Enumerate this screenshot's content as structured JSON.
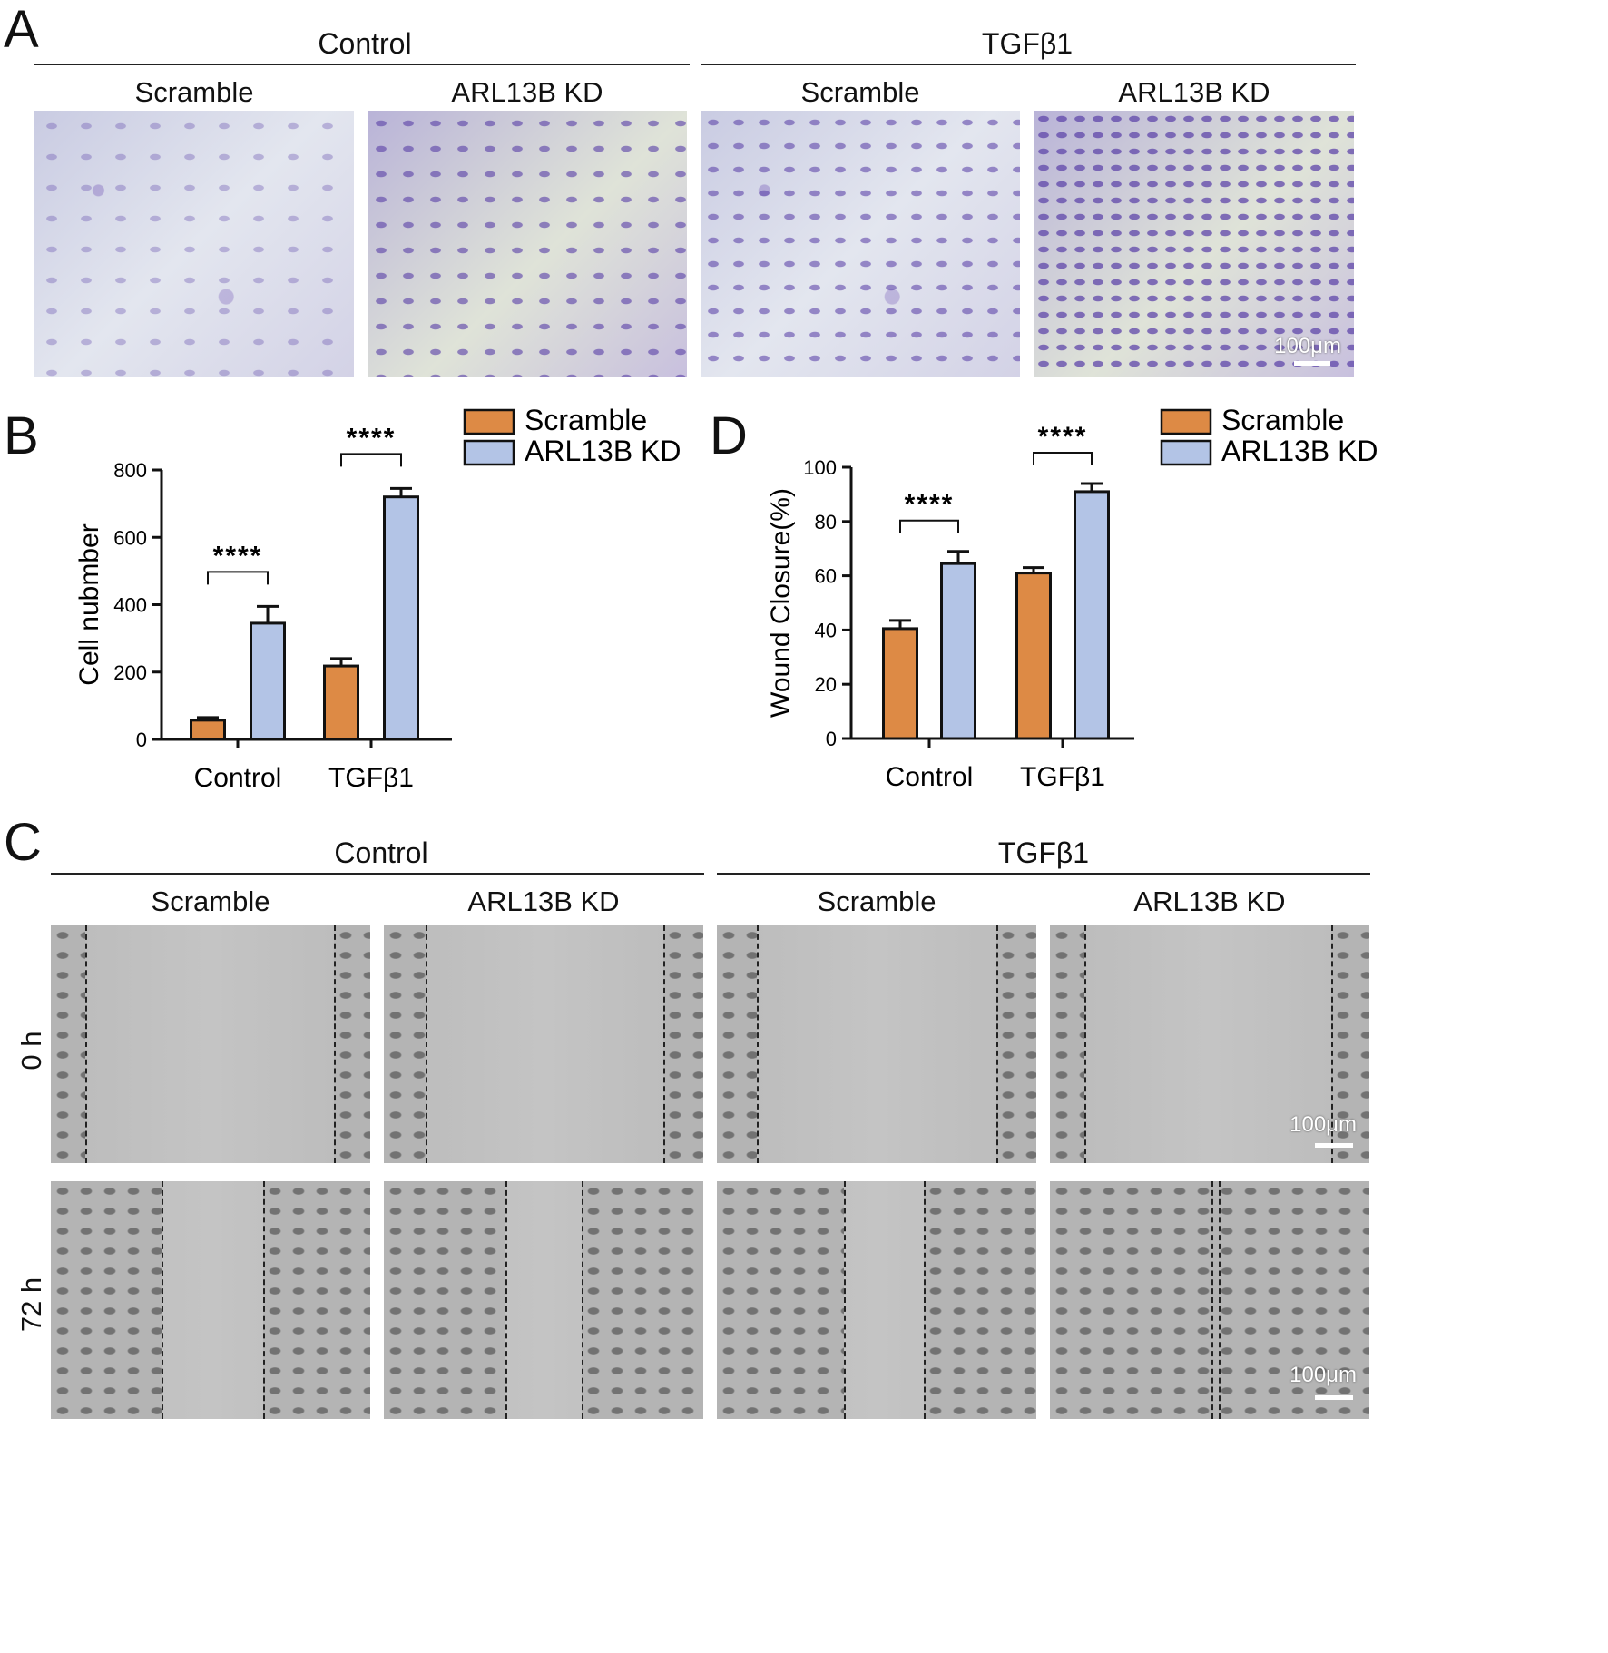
{
  "panel_labels": {
    "a": "A",
    "b": "B",
    "c": "C",
    "d": "D"
  },
  "panelA": {
    "group_left": "Control",
    "group_right": "TGFβ1",
    "sub1": "Scramble",
    "sub2": "ARL13B KD",
    "sub3": "Scramble",
    "sub4": "ARL13B KD",
    "scale": "100μm"
  },
  "panelC": {
    "group_left": "Control",
    "group_right": "TGFβ1",
    "sub1": "Scramble",
    "sub2": "ARL13B KD",
    "sub3": "Scramble",
    "sub4": "ARL13B KD",
    "row1": "0 h",
    "row2": "72 h",
    "scale1": "100μm",
    "scale2": "100μm"
  },
  "colors": {
    "scramble": "#dd8a45",
    "kd": "#b3c4e6"
  },
  "chart_data": [
    {
      "type": "bar",
      "panel": "B",
      "categories": [
        "Control",
        "TGFβ1"
      ],
      "series": [
        {
          "name": "Scramble",
          "values": [
            57,
            218
          ],
          "errors": [
            8,
            22
          ]
        },
        {
          "name": "ARL13B KD",
          "values": [
            345,
            720
          ],
          "errors": [
            50,
            25
          ]
        }
      ],
      "ylabel": "Cell nubmber",
      "ylim": [
        0,
        800
      ],
      "yticks": [
        0,
        200,
        400,
        600,
        800
      ],
      "significance": [
        "****",
        "****"
      ],
      "legend": "top-right"
    },
    {
      "type": "bar",
      "panel": "D",
      "categories": [
        "Control",
        "TGFβ1"
      ],
      "series": [
        {
          "name": "Scramble",
          "values": [
            40.5,
            61
          ],
          "errors": [
            3,
            2
          ]
        },
        {
          "name": "ARL13B KD",
          "values": [
            64.5,
            91
          ],
          "errors": [
            4.5,
            3
          ]
        }
      ],
      "ylabel": "Wound Closure(%)",
      "ylim": [
        0,
        100
      ],
      "yticks": [
        0,
        20,
        40,
        60,
        80,
        100
      ],
      "significance": [
        "****",
        "****"
      ],
      "legend": "top-right"
    }
  ]
}
